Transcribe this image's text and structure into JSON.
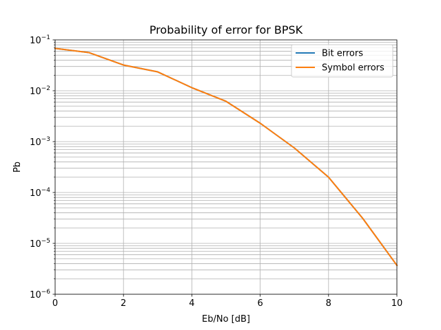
{
  "chart_data": {
    "type": "line",
    "title": "Probability of error for BPSK",
    "xlabel": "Eb/No [dB]",
    "ylabel": "Pb",
    "xlim": [
      0,
      10
    ],
    "ylim": [
      1e-06,
      0.1
    ],
    "yscale": "log",
    "grid": "major and minor",
    "legend_position": "top-right",
    "x": [
      0,
      1,
      2,
      3,
      4,
      5,
      6,
      7,
      8,
      9,
      10
    ],
    "series": [
      {
        "name": "Bit errors",
        "color": "#1f77b4",
        "values": [
          0.068,
          0.056,
          0.032,
          0.0235,
          0.0115,
          0.0062,
          0.0023,
          0.00075,
          0.0002,
          3.1e-05,
          3.7e-06
        ]
      },
      {
        "name": "Symbol errors",
        "color": "#ff7f0e",
        "values": [
          0.068,
          0.056,
          0.032,
          0.0235,
          0.0115,
          0.0062,
          0.0023,
          0.00075,
          0.0002,
          3.1e-05,
          3.7e-06
        ]
      }
    ],
    "x_ticks": [
      "0",
      "2",
      "4",
      "6",
      "8",
      "10"
    ],
    "y_ticks": [
      {
        "base": "10",
        "exp": "−1"
      },
      {
        "base": "10",
        "exp": "−2"
      },
      {
        "base": "10",
        "exp": "−3"
      },
      {
        "base": "10",
        "exp": "−4"
      },
      {
        "base": "10",
        "exp": "−5"
      },
      {
        "base": "10",
        "exp": "−6"
      }
    ]
  }
}
